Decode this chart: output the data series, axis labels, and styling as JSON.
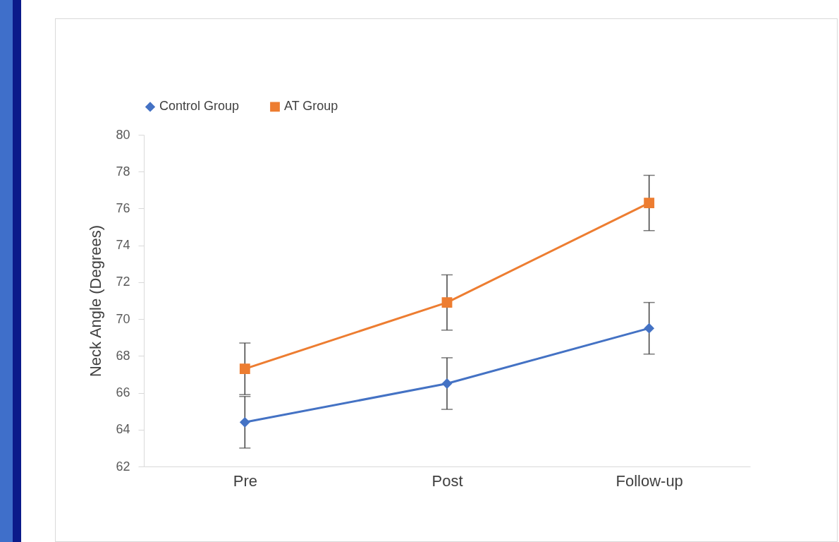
{
  "chart_data": {
    "type": "line",
    "ylabel": "Neck Angle (Degrees)",
    "categories": [
      "Pre",
      "Post",
      "Follow-up"
    ],
    "series": [
      {
        "name": "Control Group",
        "color": "#4472c4",
        "marker": "diamond",
        "values": [
          64.4,
          66.5,
          69.5
        ],
        "errors": [
          1.4,
          1.4,
          1.4
        ]
      },
      {
        "name": "AT Group",
        "color": "#ed7d31",
        "marker": "square",
        "values": [
          67.3,
          70.9,
          76.3
        ],
        "errors": [
          1.4,
          1.5,
          1.5
        ]
      }
    ],
    "ylim": [
      62,
      80
    ],
    "yticks": [
      62,
      64,
      66,
      68,
      70,
      72,
      74,
      76,
      78,
      80
    ],
    "grid": false,
    "legend": "top"
  }
}
